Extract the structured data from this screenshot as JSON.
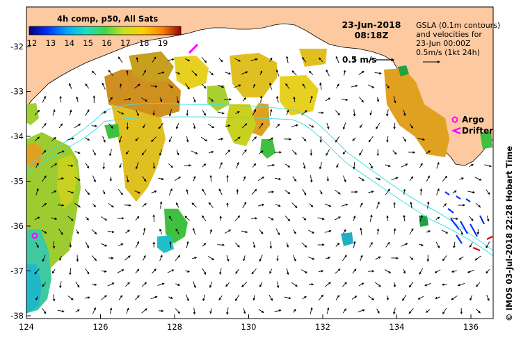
{
  "colorbar": {
    "title": "4h comp, p50, All Sats",
    "ticks": [
      "12",
      "13",
      "14",
      "15",
      "16",
      "17",
      "18",
      "19"
    ],
    "colors": [
      "#00007f",
      "#0020ff",
      "#00a0ff",
      "#20e0c0",
      "#40e040",
      "#c0e020",
      "#ffd000",
      "#ff8000",
      "#d03000",
      "#a00000"
    ]
  },
  "header": {
    "date": "23-Jun-2018",
    "time": "08:18Z"
  },
  "legend": {
    "line1": "GSLA (0.1m contours)",
    "line2": "and velocities for",
    "line3": "23-Jun 00:00Z",
    "line4": "0.5m/s (1kt 24h)",
    "scale_label": "0.5 m/s",
    "argo_label": "Argo",
    "drifter_label": "Drifter"
  },
  "axes": {
    "x_ticks": [
      "124",
      "126",
      "128",
      "130",
      "132",
      "134",
      "136"
    ],
    "y_ticks": [
      "-32",
      "-33",
      "-34",
      "-35",
      "-36",
      "-37",
      "-38"
    ]
  },
  "credit": "© IMOS 03-Jul-2018 22:28 Hobart Time",
  "colors": {
    "land": "#fcc9a0",
    "contour": "#40e0e8",
    "argo": "#ff00ff",
    "drifter": "#ff00ff"
  }
}
